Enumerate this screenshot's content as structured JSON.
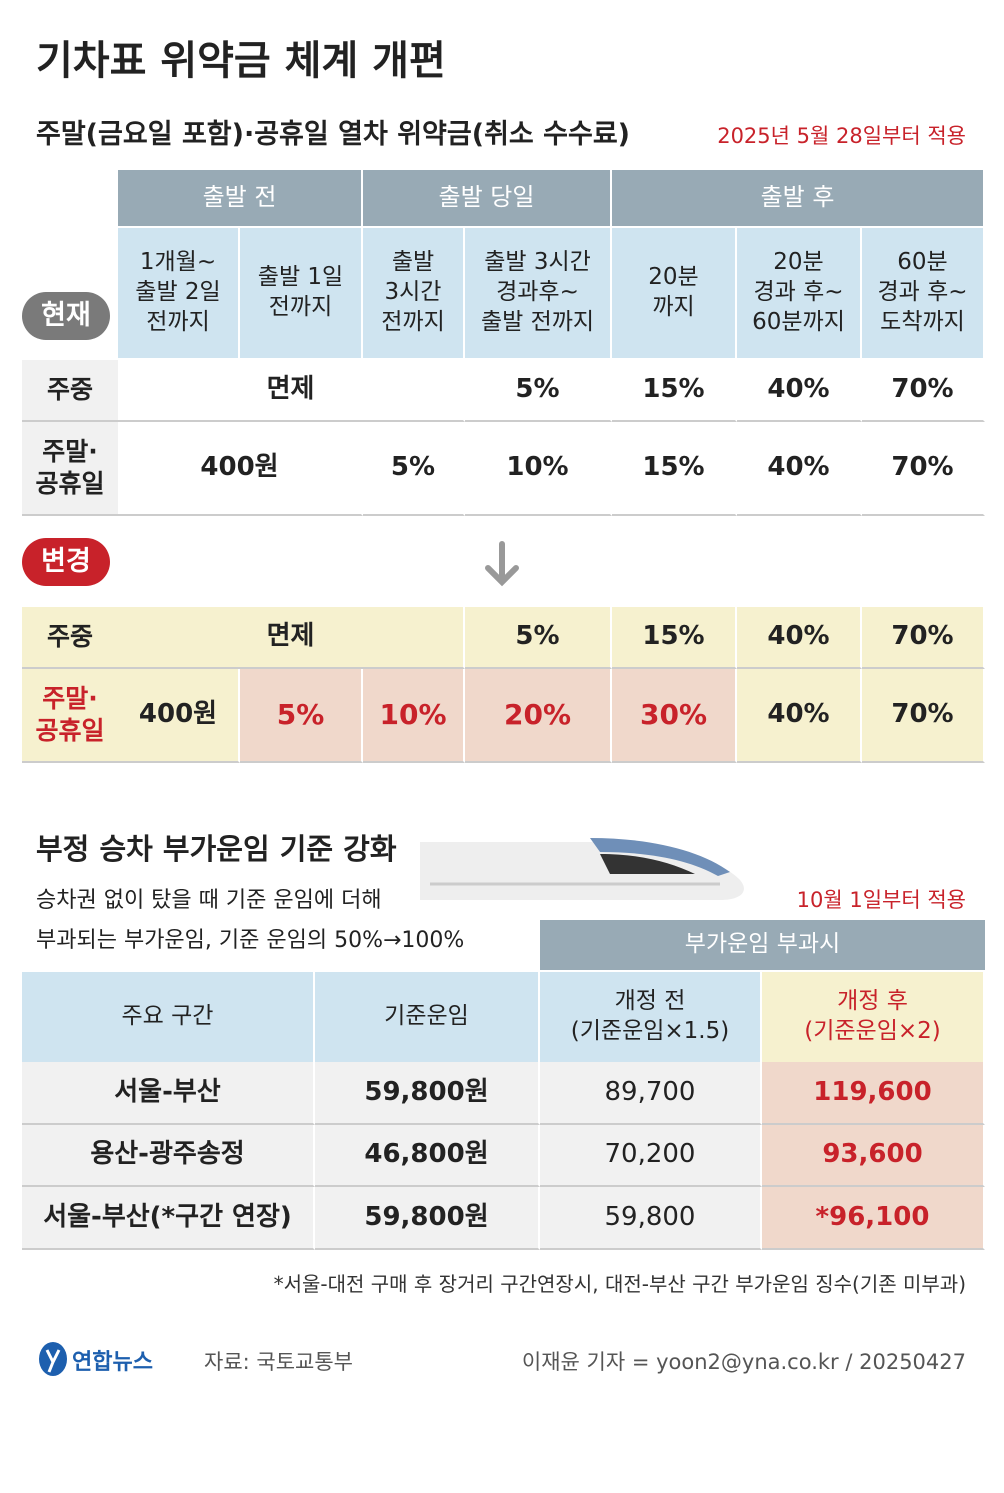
{
  "title": "기차표 위약금 체계 개편",
  "penalty": {
    "subtitle": "주말(금요일 포함)·공휴일 열차 위약금(취소 수수료)",
    "effective": "2025년 5월 28일부터 적용",
    "groups": [
      "출발 전",
      "출발 당일",
      "출발 후"
    ],
    "periods": [
      "1개월~\n출발 2일\n전까지",
      "출발 1일\n전까지",
      "출발\n3시간\n전까지",
      "출발 3시간\n경과후~\n출발 전까지",
      "20분\n까지",
      "20분\n경과 후~\n60분까지",
      "60분\n경과 후~\n도착까지"
    ],
    "current": {
      "label": "현재",
      "rows": [
        {
          "label": "주중",
          "cells": [
            "면제",
            "5%",
            "15%",
            "40%",
            "70%"
          ]
        },
        {
          "label": "주말·\n공휴일",
          "cells": [
            "400원",
            "5%",
            "10%",
            "15%",
            "40%",
            "70%"
          ]
        }
      ]
    },
    "changed": {
      "label": "변경",
      "rows": [
        {
          "label": "주중",
          "cells": [
            "면제",
            "5%",
            "15%",
            "40%",
            "70%"
          ]
        },
        {
          "label": "주말·\n공휴일",
          "cells": [
            "400원",
            "5%",
            "10%",
            "20%",
            "30%",
            "40%",
            "70%"
          ]
        }
      ]
    }
  },
  "surcharge": {
    "title": "부정 승차 부가운임 기준 강화",
    "description": [
      "승차권 없이 탔을 때 기준 운임에 더해",
      "부과되는 부가운임, 기준 운임의 50%→100%"
    ],
    "effective": "10월 1일부터 적용",
    "group": "부가운임 부과시",
    "columns": [
      "주요 구간",
      "기준운임",
      "개정 전\n(기준운임×1.5)",
      "개정 후\n(기준운임×2)"
    ],
    "rows": [
      [
        "서울-부산",
        "59,800원",
        "89,700",
        "119,600"
      ],
      [
        "용산-광주송정",
        "46,800원",
        "70,200",
        "93,600"
      ],
      [
        "서울-부산(*구간 연장)",
        "59,800원",
        "59,800",
        "*96,100"
      ]
    ]
  },
  "footnote": "*서울-대전 구매 후 장거리 구간연장시, 대전-부산 구간 부가운임 징수(기존 미부과)",
  "footer": {
    "logo": "연합뉴스",
    "source": "자료: 국토교통부",
    "credit": "이재윤 기자 = yoon2@yna.co.kr / 20250427"
  }
}
